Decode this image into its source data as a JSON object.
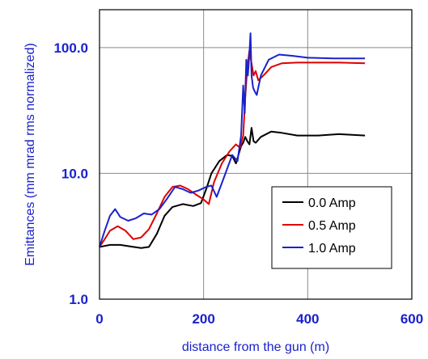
{
  "chart_data": {
    "type": "line",
    "title": "",
    "xlabel": "distance from the gun (m)",
    "ylabel": "Emittances (mm mrad rms normalized)",
    "xlim": [
      0,
      600
    ],
    "ylim": [
      1.0,
      200.0
    ],
    "yscale": "log",
    "grid": true,
    "legend": "lower-right",
    "xticks": [
      "0",
      "200",
      "400",
      "600"
    ],
    "yticks": [
      "1.0",
      "10.0",
      "100.0"
    ],
    "series": [
      {
        "name": "0.0 Amp",
        "color": "#000000",
        "x": [
          0,
          10,
          20,
          40,
          60,
          80,
          95,
          110,
          125,
          140,
          160,
          180,
          195,
          205,
          215,
          230,
          245,
          255,
          262,
          268,
          272,
          276,
          280,
          284,
          288,
          292,
          296,
          300,
          310,
          330,
          350,
          380,
          420,
          460,
          510
        ],
        "y": [
          2.6,
          2.65,
          2.7,
          2.7,
          2.62,
          2.55,
          2.6,
          3.3,
          4.6,
          5.4,
          5.7,
          5.5,
          5.8,
          7.5,
          10.0,
          12.5,
          14.0,
          13.8,
          12.0,
          14.5,
          16.5,
          17.5,
          19.5,
          18.0,
          17.0,
          23.0,
          18.0,
          17.5,
          19.5,
          21.5,
          21.0,
          20.0,
          20.0,
          20.5,
          20.0
        ]
      },
      {
        "name": "0.5 Amp",
        "color": "#dd0000",
        "x": [
          0,
          10,
          20,
          35,
          50,
          65,
          80,
          95,
          110,
          125,
          140,
          155,
          170,
          185,
          200,
          210,
          220,
          235,
          250,
          262,
          270,
          276,
          280,
          284,
          288,
          292,
          296,
          300,
          305,
          315,
          330,
          350,
          380,
          420,
          460,
          510
        ],
        "y": [
          2.6,
          3.0,
          3.5,
          3.8,
          3.5,
          3.0,
          3.1,
          3.6,
          4.8,
          6.5,
          7.8,
          8.0,
          7.5,
          6.8,
          6.2,
          5.7,
          8.5,
          12.0,
          15.0,
          17.0,
          16.0,
          20.0,
          40.0,
          70.0,
          95.0,
          75.0,
          60.0,
          65.0,
          55.0,
          60.0,
          70.0,
          75.0,
          76.0,
          76.0,
          76.0,
          75.0
        ]
      },
      {
        "name": "1.0 Amp",
        "color": "#1a22cc",
        "x": [
          0,
          10,
          20,
          30,
          40,
          55,
          70,
          85,
          100,
          115,
          130,
          145,
          160,
          175,
          190,
          205,
          215,
          225,
          240,
          255,
          265,
          272,
          276,
          279,
          282,
          285,
          288,
          290,
          292,
          295,
          298,
          302,
          310,
          325,
          345,
          370,
          400,
          450,
          510
        ],
        "y": [
          2.6,
          3.5,
          4.6,
          5.2,
          4.5,
          4.2,
          4.4,
          4.8,
          4.7,
          5.2,
          6.3,
          7.8,
          7.5,
          7.0,
          7.3,
          7.8,
          8.0,
          6.5,
          9.5,
          14.0,
          12.5,
          20.0,
          50.0,
          30.0,
          80.0,
          60.0,
          90.0,
          130.0,
          60.0,
          48.0,
          45.0,
          42.0,
          60.0,
          80.0,
          88.0,
          86.0,
          83.0,
          82.0,
          82.0
        ]
      }
    ]
  }
}
